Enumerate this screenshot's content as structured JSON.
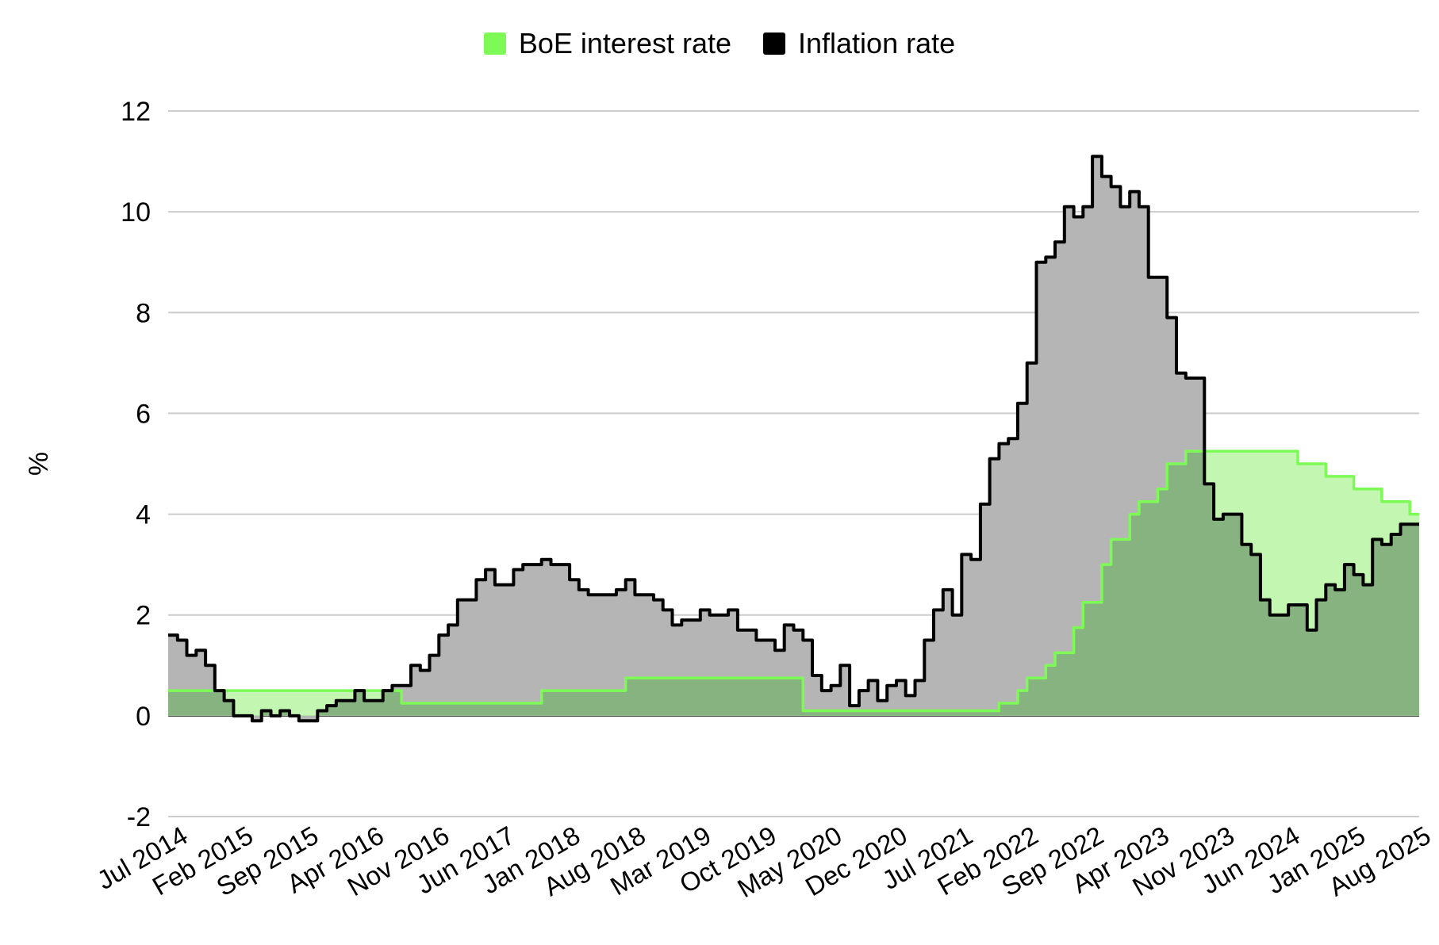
{
  "colors": {
    "interest": "#7dfa56",
    "interest_fill": "#c2f6b1",
    "overlap_fill": "#86b380",
    "inflation": "#000000",
    "inflation_fill": "#b5b5b5",
    "grid": "#cccccc"
  },
  "chart_data": {
    "type": "area",
    "title": "",
    "ylabel": "%",
    "xlabel": "",
    "ylim": [
      -2,
      12
    ],
    "yticks": [
      -2,
      0,
      2,
      4,
      6,
      8,
      10,
      12
    ],
    "grid": true,
    "legend_position": "top",
    "x_tick_labels": [
      "Jul 2014",
      "Feb 2015",
      "Sep 2015",
      "Apr 2016",
      "Nov 2016",
      "Jun 2017",
      "Jan 2018",
      "Aug 2018",
      "Mar 2019",
      "Oct 2019",
      "May 2020",
      "Dec 2020",
      "Jul 2021",
      "Feb 2022",
      "Sep 2022",
      "Apr 2023",
      "Nov 2023",
      "Jun 2024",
      "Jan 2025",
      "Aug 2025"
    ],
    "x_range": [
      "2014-07",
      "2025-08"
    ],
    "series": [
      {
        "name": "BoE interest rate",
        "step": true,
        "points": [
          [
            "2014-07",
            0.5
          ],
          [
            "2016-08",
            0.25
          ],
          [
            "2017-11",
            0.5
          ],
          [
            "2018-08",
            0.75
          ],
          [
            "2020-03",
            0.1
          ],
          [
            "2021-12",
            0.25
          ],
          [
            "2022-02",
            0.5
          ],
          [
            "2022-03",
            0.75
          ],
          [
            "2022-05",
            1.0
          ],
          [
            "2022-06",
            1.25
          ],
          [
            "2022-08",
            1.75
          ],
          [
            "2022-09",
            2.25
          ],
          [
            "2022-11",
            3.0
          ],
          [
            "2022-12",
            3.5
          ],
          [
            "2023-02",
            4.0
          ],
          [
            "2023-03",
            4.25
          ],
          [
            "2023-05",
            4.5
          ],
          [
            "2023-06",
            5.0
          ],
          [
            "2023-08",
            5.25
          ],
          [
            "2024-08",
            5.0
          ],
          [
            "2024-11",
            4.75
          ],
          [
            "2025-02",
            4.5
          ],
          [
            "2025-05",
            4.25
          ],
          [
            "2025-08",
            4.0
          ]
        ]
      },
      {
        "name": "Inflation rate",
        "step": true,
        "points": [
          [
            "2014-07",
            1.6
          ],
          [
            "2014-08",
            1.5
          ],
          [
            "2014-09",
            1.2
          ],
          [
            "2014-10",
            1.3
          ],
          [
            "2014-11",
            1.0
          ],
          [
            "2014-12",
            0.5
          ],
          [
            "2015-01",
            0.3
          ],
          [
            "2015-02",
            0.0
          ],
          [
            "2015-03",
            0.0
          ],
          [
            "2015-04",
            -0.1
          ],
          [
            "2015-05",
            0.1
          ],
          [
            "2015-06",
            0.0
          ],
          [
            "2015-07",
            0.1
          ],
          [
            "2015-08",
            0.0
          ],
          [
            "2015-09",
            -0.1
          ],
          [
            "2015-10",
            -0.1
          ],
          [
            "2015-11",
            0.1
          ],
          [
            "2015-12",
            0.2
          ],
          [
            "2016-01",
            0.3
          ],
          [
            "2016-02",
            0.3
          ],
          [
            "2016-03",
            0.5
          ],
          [
            "2016-04",
            0.3
          ],
          [
            "2016-05",
            0.3
          ],
          [
            "2016-06",
            0.5
          ],
          [
            "2016-07",
            0.6
          ],
          [
            "2016-08",
            0.6
          ],
          [
            "2016-09",
            1.0
          ],
          [
            "2016-10",
            0.9
          ],
          [
            "2016-11",
            1.2
          ],
          [
            "2016-12",
            1.6
          ],
          [
            "2017-01",
            1.8
          ],
          [
            "2017-02",
            2.3
          ],
          [
            "2017-03",
            2.3
          ],
          [
            "2017-04",
            2.7
          ],
          [
            "2017-05",
            2.9
          ],
          [
            "2017-06",
            2.6
          ],
          [
            "2017-07",
            2.6
          ],
          [
            "2017-08",
            2.9
          ],
          [
            "2017-09",
            3.0
          ],
          [
            "2017-10",
            3.0
          ],
          [
            "2017-11",
            3.1
          ],
          [
            "2017-12",
            3.0
          ],
          [
            "2018-01",
            3.0
          ],
          [
            "2018-02",
            2.7
          ],
          [
            "2018-03",
            2.5
          ],
          [
            "2018-04",
            2.4
          ],
          [
            "2018-05",
            2.4
          ],
          [
            "2018-06",
            2.4
          ],
          [
            "2018-07",
            2.5
          ],
          [
            "2018-08",
            2.7
          ],
          [
            "2018-09",
            2.4
          ],
          [
            "2018-10",
            2.4
          ],
          [
            "2018-11",
            2.3
          ],
          [
            "2018-12",
            2.1
          ],
          [
            "2019-01",
            1.8
          ],
          [
            "2019-02",
            1.9
          ],
          [
            "2019-03",
            1.9
          ],
          [
            "2019-04",
            2.1
          ],
          [
            "2019-05",
            2.0
          ],
          [
            "2019-06",
            2.0
          ],
          [
            "2019-07",
            2.1
          ],
          [
            "2019-08",
            1.7
          ],
          [
            "2019-09",
            1.7
          ],
          [
            "2019-10",
            1.5
          ],
          [
            "2019-11",
            1.5
          ],
          [
            "2019-12",
            1.3
          ],
          [
            "2020-01",
            1.8
          ],
          [
            "2020-02",
            1.7
          ],
          [
            "2020-03",
            1.5
          ],
          [
            "2020-04",
            0.8
          ],
          [
            "2020-05",
            0.5
          ],
          [
            "2020-06",
            0.6
          ],
          [
            "2020-07",
            1.0
          ],
          [
            "2020-08",
            0.2
          ],
          [
            "2020-09",
            0.5
          ],
          [
            "2020-10",
            0.7
          ],
          [
            "2020-11",
            0.3
          ],
          [
            "2020-12",
            0.6
          ],
          [
            "2021-01",
            0.7
          ],
          [
            "2021-02",
            0.4
          ],
          [
            "2021-03",
            0.7
          ],
          [
            "2021-04",
            1.5
          ],
          [
            "2021-05",
            2.1
          ],
          [
            "2021-06",
            2.5
          ],
          [
            "2021-07",
            2.0
          ],
          [
            "2021-08",
            3.2
          ],
          [
            "2021-09",
            3.1
          ],
          [
            "2021-10",
            4.2
          ],
          [
            "2021-11",
            5.1
          ],
          [
            "2021-12",
            5.4
          ],
          [
            "2022-01",
            5.5
          ],
          [
            "2022-02",
            6.2
          ],
          [
            "2022-03",
            7.0
          ],
          [
            "2022-04",
            9.0
          ],
          [
            "2022-05",
            9.1
          ],
          [
            "2022-06",
            9.4
          ],
          [
            "2022-07",
            10.1
          ],
          [
            "2022-08",
            9.9
          ],
          [
            "2022-09",
            10.1
          ],
          [
            "2022-10",
            11.1
          ],
          [
            "2022-11",
            10.7
          ],
          [
            "2022-12",
            10.5
          ],
          [
            "2023-01",
            10.1
          ],
          [
            "2023-02",
            10.4
          ],
          [
            "2023-03",
            10.1
          ],
          [
            "2023-04",
            8.7
          ],
          [
            "2023-05",
            8.7
          ],
          [
            "2023-06",
            7.9
          ],
          [
            "2023-07",
            6.8
          ],
          [
            "2023-08",
            6.7
          ],
          [
            "2023-09",
            6.7
          ],
          [
            "2023-10",
            4.6
          ],
          [
            "2023-11",
            3.9
          ],
          [
            "2023-12",
            4.0
          ],
          [
            "2024-01",
            4.0
          ],
          [
            "2024-02",
            3.4
          ],
          [
            "2024-03",
            3.2
          ],
          [
            "2024-04",
            2.3
          ],
          [
            "2024-05",
            2.0
          ],
          [
            "2024-06",
            2.0
          ],
          [
            "2024-07",
            2.2
          ],
          [
            "2024-08",
            2.2
          ],
          [
            "2024-09",
            1.7
          ],
          [
            "2024-10",
            2.3
          ],
          [
            "2024-11",
            2.6
          ],
          [
            "2024-12",
            2.5
          ],
          [
            "2025-01",
            3.0
          ],
          [
            "2025-02",
            2.8
          ],
          [
            "2025-03",
            2.6
          ],
          [
            "2025-04",
            3.5
          ],
          [
            "2025-05",
            3.4
          ],
          [
            "2025-06",
            3.6
          ],
          [
            "2025-07",
            3.8
          ],
          [
            "2025-08",
            3.8
          ]
        ]
      }
    ]
  }
}
